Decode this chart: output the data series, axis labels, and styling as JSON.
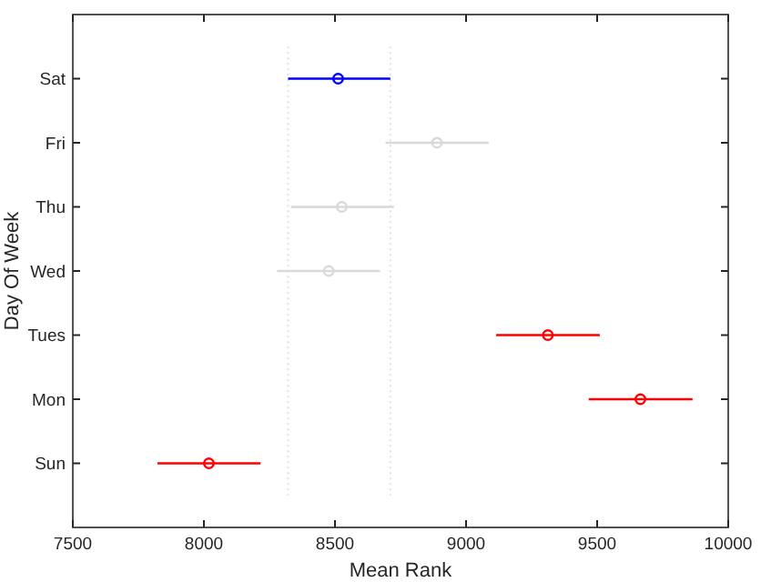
{
  "chart_data": {
    "type": "scatter",
    "orientation": "horizontal",
    "xlabel": "Mean Rank",
    "ylabel": "Day Of Week",
    "categories": [
      "Sat",
      "Fri",
      "Thu",
      "Wed",
      "Tues",
      "Mon",
      "Sun"
    ],
    "values": [
      8512,
      8889,
      8526,
      8476,
      9312,
      9665,
      8019
    ],
    "errors": [
      [
        8321,
        8711
      ],
      [
        8693,
        9086
      ],
      [
        8332,
        8725
      ],
      [
        8279,
        8672
      ],
      [
        9115,
        9510
      ],
      [
        9468,
        9864
      ],
      [
        7823,
        8216
      ]
    ],
    "colors": [
      "#0000ff",
      "#d9d9d9",
      "#d9d9d9",
      "#d9d9d9",
      "#ff0000",
      "#ff0000",
      "#ff0000"
    ],
    "marker": "circle",
    "grid": false,
    "xlim": [
      7500,
      10000
    ],
    "xticks": [
      7500,
      8000,
      8500,
      9000,
      9500,
      10000
    ],
    "ref_lines": [
      {
        "axis": "x",
        "value": 8321,
        "color": "#e0e0e0",
        "line_style": "dotted"
      },
      {
        "axis": "x",
        "value": 8711,
        "color": "#e0e0e0",
        "line_style": "dotted"
      }
    ]
  }
}
